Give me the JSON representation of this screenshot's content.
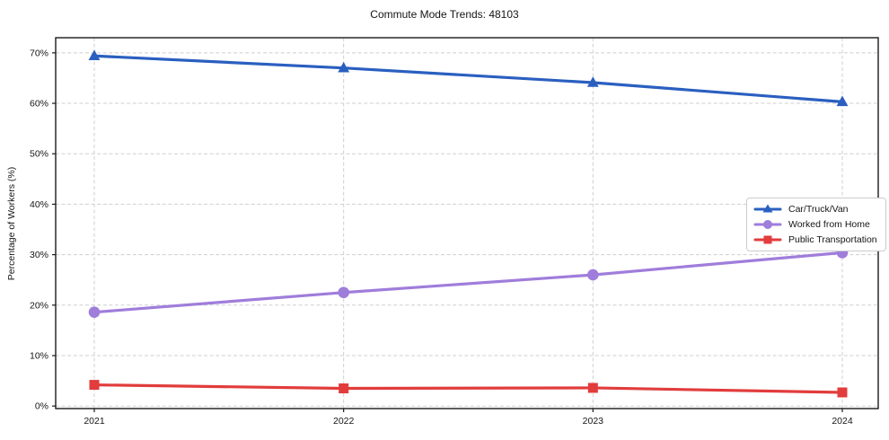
{
  "figure": {
    "title": "Commute Mode Trends: 48103",
    "ylabel": "Percentage of Workers (%)"
  },
  "chart_data": {
    "type": "line",
    "title": "Commute Mode Trends: 48103",
    "xlabel": "",
    "ylabel": "Percentage of Workers (%)",
    "x": [
      2021,
      2022,
      2023,
      2024
    ],
    "series": [
      {
        "name": "Car/Truck/Van",
        "color": "#2a5fc0",
        "marker": "triangle",
        "values": [
          69.4,
          67.0,
          64.1,
          60.3
        ]
      },
      {
        "name": "Worked from Home",
        "color": "#9f7ddb",
        "marker": "circle",
        "values": [
          18.6,
          22.5,
          26.0,
          30.4
        ]
      },
      {
        "name": "Public Transportation",
        "color": "#e23c3c",
        "marker": "square",
        "values": [
          4.2,
          3.5,
          3.6,
          2.7
        ]
      }
    ],
    "ylim": [
      -0.5,
      73
    ],
    "yticks": [
      0,
      10,
      20,
      30,
      40,
      50,
      60,
      70
    ],
    "ytick_suffix": "%",
    "grid": true,
    "grid_style": "dashed",
    "legend_position": "center-right"
  }
}
